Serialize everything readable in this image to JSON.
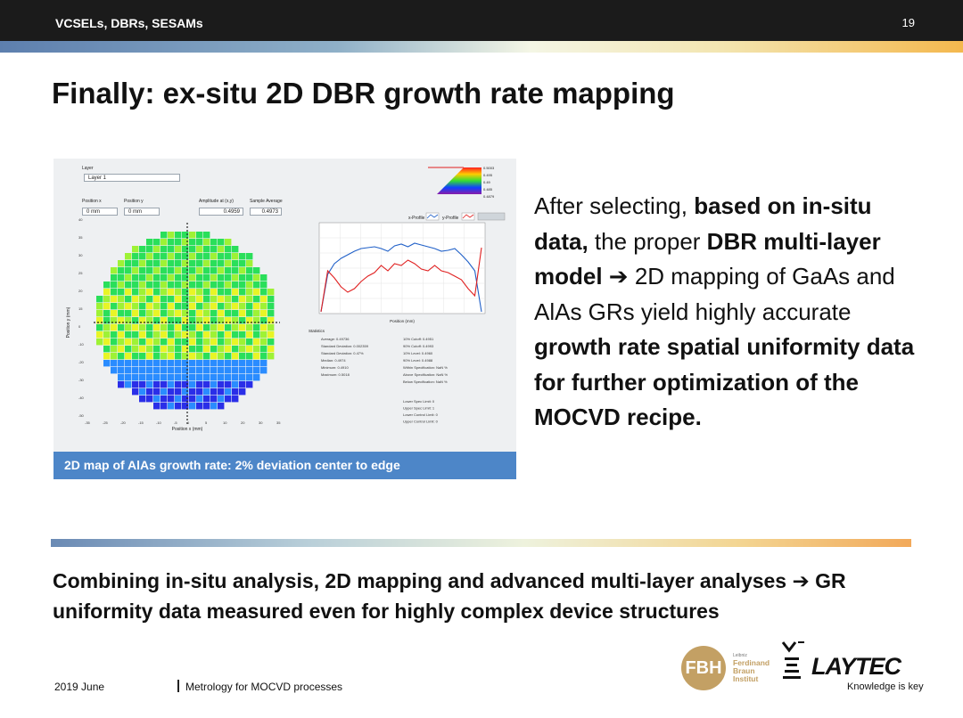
{
  "header": {
    "section": "VCSELs, DBRs, SESAMs",
    "page_number": "19"
  },
  "slide": {
    "title": "Finally: ex-situ 2D DBR growth rate mapping",
    "figure": {
      "caption": "2D map of AlAs growth rate: 2% deviation center to edge",
      "panel": {
        "layer_label": "Layer",
        "layer_value": "Layer 1",
        "position_x_label": "Position x",
        "position_y_label": "Position y",
        "position_x_value": "0 mm",
        "position_y_value": "0 mm",
        "amplitude_label": "Amplitude at (x,y)",
        "amplitude_value": "0.4959",
        "sample_average_label": "Sample Average",
        "sample_average_value": "0.4973",
        "profile_x_label": "x-Profile",
        "profile_y_label": "y-Profile",
        "profile_axis_label": "Position (mm)",
        "map_x_axis_label": "Position x (mm)",
        "map_y_axis_label": "Position y (mm)",
        "statistics_label": "Statistics",
        "stats_left": [
          "Average: 0.49736",
          "Standard Deviation: 0.002359",
          "Standard Deviation: 0.47%",
          "Median: 0.4974",
          "Minimum: 0.4910",
          "Maximum: 0.5018"
        ],
        "stats_right": [
          "10% Cutoff: 0.4951",
          "90% Cutoff: 0.4993",
          "10% Level: 0.4960",
          "90% Level: 0.4988",
          "Within Specification: NaN %",
          "Above Specification: NaN %",
          "Below Specification: NaN %"
        ],
        "limits": [
          "Lower Spec Limit: 0",
          "Upper Spec Limit: 1",
          "Lower Control Limit: 0",
          "Upper Control Limit: 0"
        ]
      }
    },
    "right_text": {
      "t1": "After selecting, ",
      "b1": "based on in-situ data,",
      "t2": " the proper ",
      "b2": "DBR multi-layer model",
      "arrow": " ➔ ",
      "t3": "2D mapping of GaAs and AlAs GRs yield highly accurate ",
      "b3": "growth rate spatial uniformity data for further optimization of the MOCVD recipe."
    },
    "bottom_text": "Combining in-situ analysis, 2D mapping and advanced multi-layer analyses ➔ GR uniformity data measured even for highly complex device structures"
  },
  "footer": {
    "date": "2019 June",
    "title": "Metrology for MOCVD processes"
  },
  "logos": {
    "fbh_abbrev": "FBH",
    "fbh_small": "Leibniz",
    "fbh_line1": "Ferdinand",
    "fbh_line2": "Braun",
    "fbh_line3": "Institut",
    "laytec_name": "LAYTEC",
    "laytec_tagline": "Knowledge is key"
  },
  "colors": {
    "header_bg": "#1b1b1b",
    "caption_bg": "#4d86c8",
    "fbh_gold": "#c3a064",
    "profile_x": "#2060c8",
    "profile_y": "#e02020"
  }
}
